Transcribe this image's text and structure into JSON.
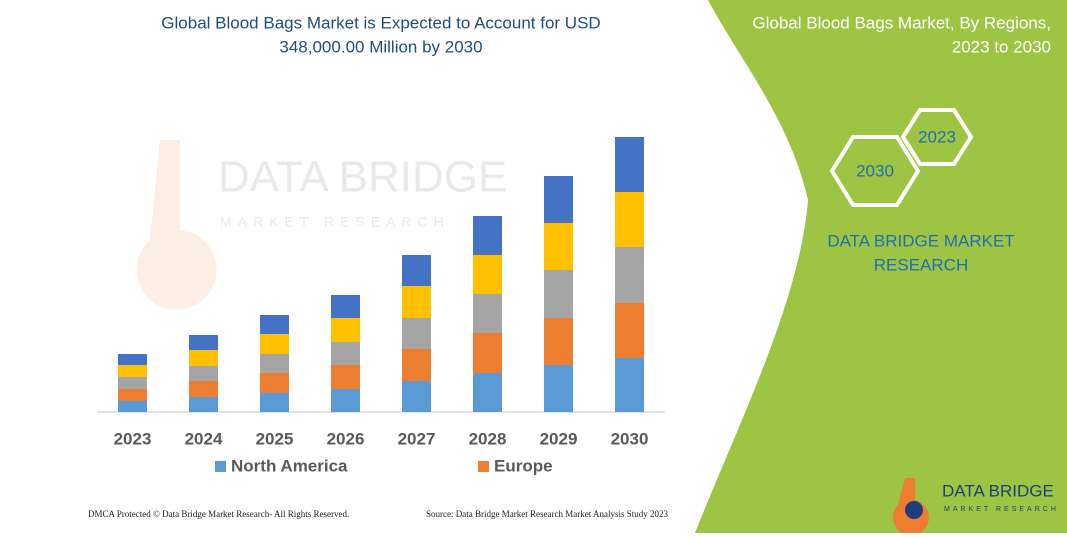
{
  "chart_data": {
    "type": "bar",
    "stacked": true,
    "title": [
      "Global Blood Bags Market is Expected to Account for USD",
      "348,000.00 Million by 2030"
    ],
    "categories": [
      "2023",
      "2024",
      "2025",
      "2026",
      "2027",
      "2028",
      "2029",
      "2030"
    ],
    "series": [
      {
        "name": "North America",
        "color": "#5b9bd5",
        "values": [
          11,
          15,
          19,
          23,
          31,
          39,
          47,
          54
        ]
      },
      {
        "name": "Europe",
        "color": "#ed7d31",
        "values": [
          12,
          16,
          20,
          24,
          32,
          40,
          47,
          55
        ]
      },
      {
        "color": "#a5a5a5",
        "values": [
          12,
          15,
          19,
          23,
          31,
          39,
          48,
          56
        ]
      },
      {
        "color": "#ffc000",
        "values": [
          12,
          16,
          20,
          24,
          32,
          39,
          47,
          55
        ]
      },
      {
        "color": "#4472c4",
        "values": [
          11,
          15,
          19,
          23,
          31,
          39,
          47,
          55
        ]
      }
    ]
  },
  "watermark": {
    "name": "DATA BRIDGE",
    "tagline": "MARKET RESEARCH"
  },
  "side_panel": {
    "title": [
      "Global Blood Bags Market, By Regions,",
      "2023 to 2030"
    ],
    "hexagons": [
      "2023",
      "2030"
    ],
    "brand": [
      "DATA BRIDGE MARKET",
      "RESEARCH"
    ]
  },
  "logo": {
    "name": "DATA BRIDGE",
    "tagline": "MARKET RESEARCH"
  },
  "footer": {
    "left": "DMCA Protected © Data Bridge Market Research-  All Rights Reserved.",
    "right": "Source: Data Bridge Market Research  Market Analysis Study 2023"
  }
}
